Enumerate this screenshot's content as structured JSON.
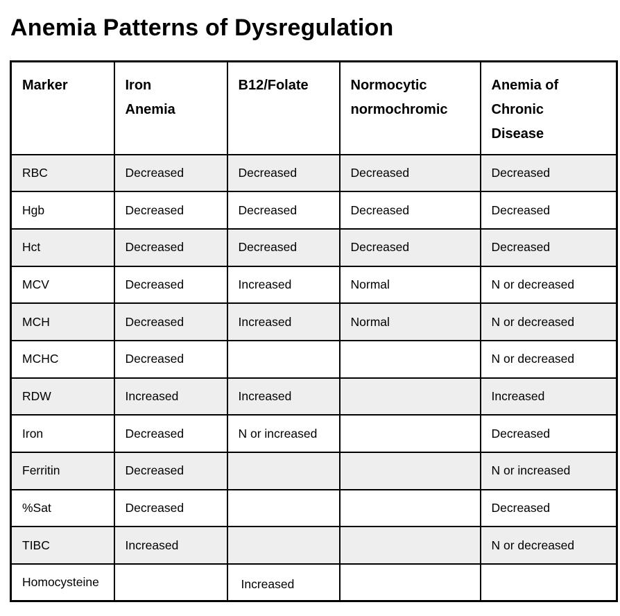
{
  "title": "Anemia Patterns of Dysregulation",
  "table": {
    "columns": [
      "Marker",
      "Iron\nAnemia",
      "B12/Folate",
      "Normocytic\nnormochromic",
      "Anemia of\nChronic\nDisease"
    ],
    "rows": [
      {
        "marker": "RBC",
        "values": [
          "Decreased",
          "Decreased",
          "Decreased",
          "Decreased"
        ]
      },
      {
        "marker": "Hgb",
        "values": [
          "Decreased",
          "Decreased",
          "Decreased",
          "Decreased"
        ]
      },
      {
        "marker": "Hct",
        "values": [
          "Decreased",
          "Decreased",
          "Decreased",
          "Decreased"
        ]
      },
      {
        "marker": "MCV",
        "values": [
          "Decreased",
          "Increased",
          "Normal",
          "N or decreased"
        ]
      },
      {
        "marker": "MCH",
        "values": [
          "Decreased",
          "Increased",
          "Normal",
          "N or decreased"
        ]
      },
      {
        "marker": "MCHC",
        "values": [
          "Decreased",
          "",
          "",
          "N or decreased"
        ]
      },
      {
        "marker": "RDW",
        "values": [
          "Increased",
          "Increased",
          "",
          "Increased"
        ]
      },
      {
        "marker": "Iron",
        "values": [
          "Decreased",
          "N or increased",
          "",
          "Decreased"
        ]
      },
      {
        "marker": "Ferritin",
        "values": [
          "Decreased",
          "",
          "",
          "N or increased"
        ]
      },
      {
        "marker": "%Sat",
        "values": [
          "Decreased",
          "",
          "",
          "Decreased"
        ]
      },
      {
        "marker": "TIBC",
        "values": [
          "Increased",
          "",
          "",
          "N or decreased"
        ]
      },
      {
        "marker": "Homocysteine",
        "values": [
          "",
          "Increased",
          "",
          ""
        ]
      }
    ],
    "colors": {
      "row_alt_background": "#eeeeee",
      "border": "#000000",
      "text": "#000000",
      "background": "#ffffff"
    }
  }
}
